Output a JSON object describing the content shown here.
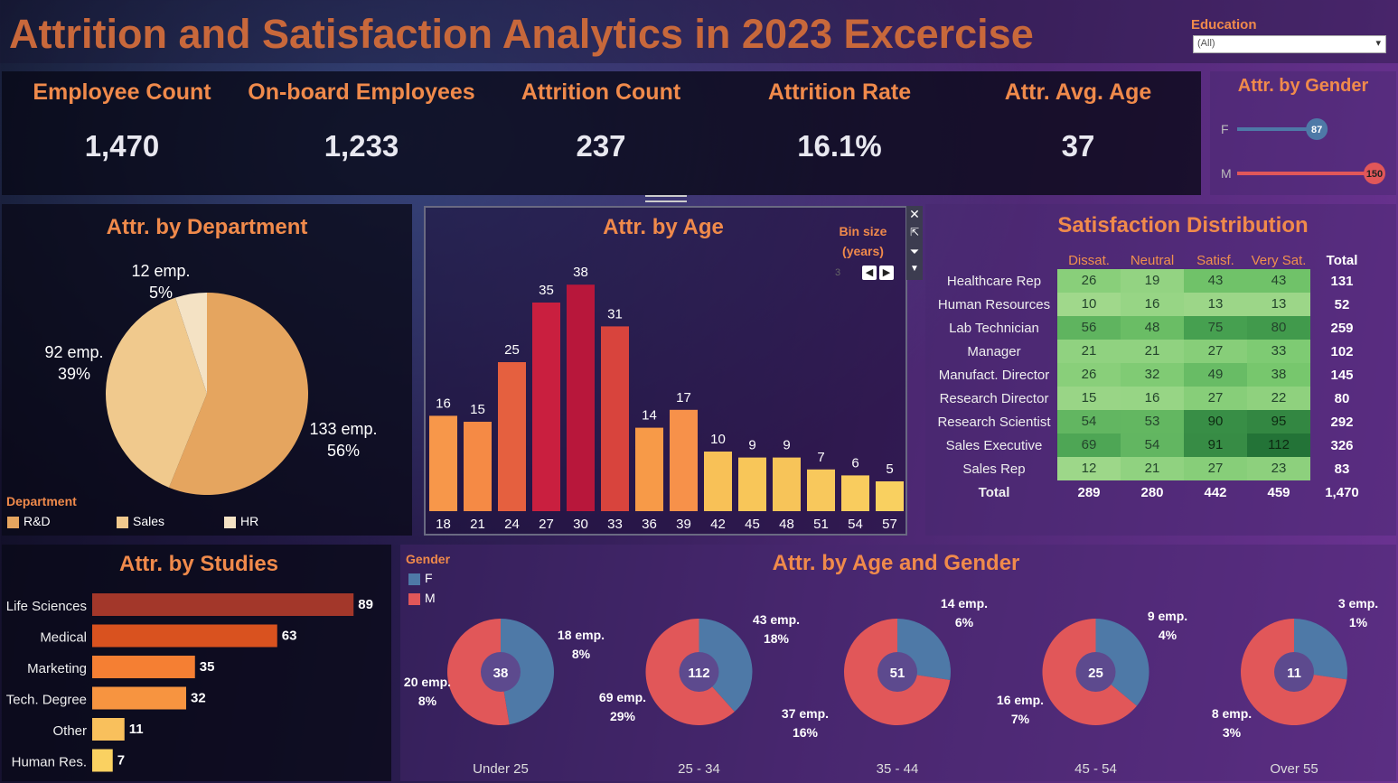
{
  "header": {
    "title": "Attrition and Satisfaction Analytics in 2023 Excercise",
    "filter_label": "Education",
    "filter_value": "(All)"
  },
  "kpis": [
    {
      "label": "Employee Count",
      "value": "1,470"
    },
    {
      "label": "On-board Employees",
      "value": "1,233"
    },
    {
      "label": "Attrition Count",
      "value": "237"
    },
    {
      "label": "Attrition Rate",
      "value": "16.1%"
    },
    {
      "label": "Attr. Avg. Age",
      "value": "37"
    }
  ],
  "gender_kpi": {
    "title": "Attr. by Gender"
  },
  "department": {
    "title": "Attr. by Department",
    "legend_title": "Department"
  },
  "age": {
    "title": "Attr. by Age",
    "bin_label": "Bin size",
    "bin_unit": "(years)",
    "bin_value": "3"
  },
  "satisfaction": {
    "title": "Satisfaction Distribution"
  },
  "studies": {
    "title": "Attr. by Studies"
  },
  "age_gender": {
    "title": "Attr. by Age and Gender",
    "legend_title": "Gender"
  },
  "colors": {
    "accent": "#f08a4b",
    "female": "#4e79a7",
    "male": "#e15759"
  },
  "chart_data": [
    {
      "id": "gender",
      "type": "bar",
      "categories": [
        "F",
        "M"
      ],
      "values": [
        87,
        150
      ],
      "title": "Attr. by Gender",
      "colors": [
        "#4e79a7",
        "#e15759"
      ]
    },
    {
      "id": "department",
      "type": "pie",
      "title": "Attr. by Department",
      "slices": [
        {
          "name": "R&D",
          "value": 133,
          "label": "133 emp.",
          "pct": "56%",
          "color": "#e5a55f"
        },
        {
          "name": "Sales",
          "value": 92,
          "label": "92 emp.",
          "pct": "39%",
          "color": "#f0c98d"
        },
        {
          "name": "HR",
          "value": 12,
          "label": "12 emp.",
          "pct": "5%",
          "color": "#f4e2c4"
        }
      ]
    },
    {
      "id": "age",
      "type": "bar",
      "title": "Attr. by Age",
      "categories": [
        "18",
        "21",
        "24",
        "27",
        "30",
        "33",
        "36",
        "39",
        "42",
        "45",
        "48",
        "51",
        "54",
        "57"
      ],
      "values": [
        16,
        15,
        25,
        35,
        38,
        31,
        14,
        17,
        10,
        9,
        9,
        7,
        6,
        5
      ],
      "ylim": [
        0,
        40
      ]
    },
    {
      "id": "satisfaction",
      "type": "heatmap",
      "title": "Satisfaction Distribution",
      "columns": [
        "Dissat.",
        "Neutral",
        "Satisf.",
        "Very Sat."
      ],
      "total_label": "Total",
      "rows": [
        {
          "label": "Healthcare Rep",
          "values": [
            26,
            19,
            43,
            43
          ],
          "total": "131"
        },
        {
          "label": "Human Resources",
          "values": [
            10,
            16,
            13,
            13
          ],
          "total": "52"
        },
        {
          "label": "Lab Technician",
          "values": [
            56,
            48,
            75,
            80
          ],
          "total": "259"
        },
        {
          "label": "Manager",
          "values": [
            21,
            21,
            27,
            33
          ],
          "total": "102"
        },
        {
          "label": "Manufact. Director",
          "values": [
            26,
            32,
            49,
            38
          ],
          "total": "145"
        },
        {
          "label": "Research Director",
          "values": [
            15,
            16,
            27,
            22
          ],
          "total": "80"
        },
        {
          "label": "Research Scientist",
          "values": [
            54,
            53,
            90,
            95
          ],
          "total": "292"
        },
        {
          "label": "Sales Executive",
          "values": [
            69,
            54,
            91,
            112
          ],
          "total": "326"
        },
        {
          "label": "Sales Rep",
          "values": [
            12,
            21,
            27,
            23
          ],
          "total": "83"
        }
      ],
      "totals": [
        "289",
        "280",
        "442",
        "459",
        "1,470"
      ]
    },
    {
      "id": "studies",
      "type": "bar",
      "orientation": "horizontal",
      "title": "Attr. by Studies",
      "categories": [
        "Life Sciences",
        "Medical",
        "Marketing",
        "Tech. Degree",
        "Other",
        "Human Res."
      ],
      "values": [
        89,
        63,
        35,
        32,
        11,
        7
      ],
      "colors": [
        "#a3372a",
        "#d9521f",
        "#f57f33",
        "#f79440",
        "#f9c05c",
        "#fad161"
      ]
    },
    {
      "id": "age_gender",
      "type": "pie",
      "title": "Attr. by Age and Gender",
      "groups": [
        {
          "name": "Under 25",
          "total": "38",
          "f": 18,
          "m": 20,
          "f_label": "18 emp.",
          "f_pct": "8%",
          "m_label": "20 emp.",
          "m_pct": "8%"
        },
        {
          "name": "25 - 34",
          "total": "112",
          "f": 43,
          "m": 69,
          "f_label": "43 emp.",
          "f_pct": "18%",
          "m_label": "69 emp.",
          "m_pct": "29%"
        },
        {
          "name": "35 - 44",
          "total": "51",
          "f": 14,
          "m": 37,
          "f_label": "14 emp.",
          "f_pct": "6%",
          "m_label": "37 emp.",
          "m_pct": "16%"
        },
        {
          "name": "45 - 54",
          "total": "25",
          "f": 9,
          "m": 16,
          "f_label": "9 emp.",
          "f_pct": "4%",
          "m_label": "16 emp.",
          "m_pct": "7%"
        },
        {
          "name": "Over 55",
          "total": "11",
          "f": 3,
          "m": 8,
          "f_label": "3 emp.",
          "f_pct": "1%",
          "m_label": "8 emp.",
          "m_pct": "3%"
        }
      ]
    }
  ]
}
